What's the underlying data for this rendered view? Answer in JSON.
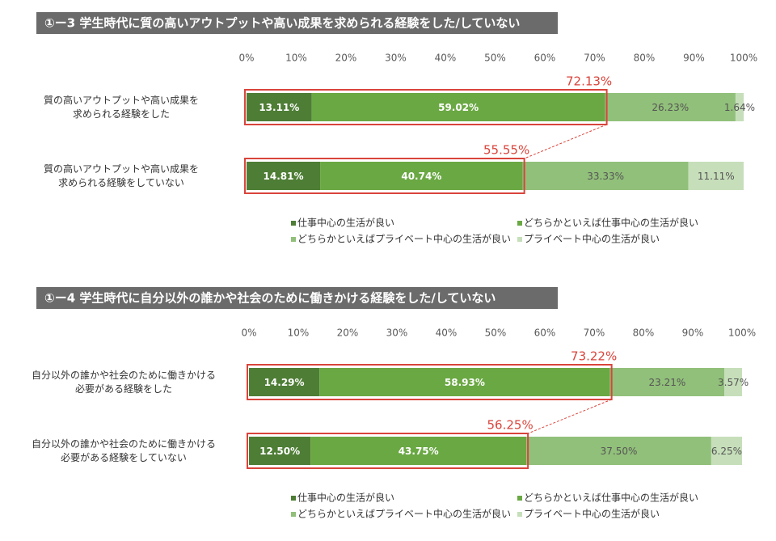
{
  "chart_data": [
    {
      "type": "stacked_bar_horizontal",
      "title": "①ー3 学生時代に質の高いアウトプットや高い成果を求められる経験をした/していない",
      "categories": [
        "質の高いアウトプットや高い成果を\n求められる経験をした",
        "質の高いアウトプットや高い成果を\n求められる経験をしていない"
      ],
      "xlim": [
        0,
        100
      ],
      "xticks": [
        {
          "value": 0,
          "label": "0%"
        },
        {
          "value": 10,
          "label": "10%"
        },
        {
          "value": 20,
          "label": "20%"
        },
        {
          "value": 30,
          "label": "30%"
        },
        {
          "value": 40,
          "label": "40%"
        },
        {
          "value": 50,
          "label": "50%"
        },
        {
          "value": 60,
          "label": "60%"
        },
        {
          "value": 70,
          "label": "70%"
        },
        {
          "value": 80,
          "label": "80%"
        },
        {
          "value": 90,
          "label": "90%"
        },
        {
          "value": 100,
          "label": "100%"
        }
      ],
      "series": [
        {
          "name": "仕事中心の生活が良い",
          "color": "#4e7d35",
          "values": [
            13.11,
            14.81
          ],
          "value_labels": [
            "13.11%",
            "14.81%"
          ]
        },
        {
          "name": "どちらかといえば仕事中心の生活が良い",
          "color": "#6aa843",
          "values": [
            59.02,
            40.74
          ],
          "value_labels": [
            "59.02%",
            "40.74%"
          ]
        },
        {
          "name": "どちらかといえばプライベート中心の生活が良い",
          "color": "#91c07a",
          "values": [
            26.23,
            33.33
          ],
          "value_labels": [
            "26.23%",
            "33.33%"
          ]
        },
        {
          "name": "プライベート中心の生活が良い",
          "color": "#c6dfba",
          "values": [
            1.64,
            11.11
          ],
          "value_labels": [
            "1.64%",
            "11.11%"
          ]
        }
      ],
      "highlight_totals": {
        "color": "#d9443b",
        "values": [
          72.13,
          55.55
        ],
        "value_labels": [
          "72.13%",
          "55.55%"
        ]
      }
    },
    {
      "type": "stacked_bar_horizontal",
      "title": "①ー4 学生時代に自分以外の誰かや社会のために働きかける経験をした/していない",
      "categories": [
        "自分以外の誰かや社会のために働きかける\n必要がある経験をした",
        "自分以外の誰かや社会のために働きかける\n必要がある経験をしていない"
      ],
      "xlim": [
        0,
        100
      ],
      "xticks": [
        {
          "value": 0,
          "label": "0%"
        },
        {
          "value": 10,
          "label": "10%"
        },
        {
          "value": 20,
          "label": "20%"
        },
        {
          "value": 30,
          "label": "30%"
        },
        {
          "value": 40,
          "label": "40%"
        },
        {
          "value": 50,
          "label": "50%"
        },
        {
          "value": 60,
          "label": "60%"
        },
        {
          "value": 70,
          "label": "70%"
        },
        {
          "value": 80,
          "label": "80%"
        },
        {
          "value": 90,
          "label": "90%"
        },
        {
          "value": 100,
          "label": "100%"
        }
      ],
      "series": [
        {
          "name": "仕事中心の生活が良い",
          "color": "#4e7d35",
          "values": [
            14.29,
            12.5
          ],
          "value_labels": [
            "14.29%",
            "12.50%"
          ]
        },
        {
          "name": "どちらかといえば仕事中心の生活が良い",
          "color": "#6aa843",
          "values": [
            58.93,
            43.75
          ],
          "value_labels": [
            "58.93%",
            "43.75%"
          ]
        },
        {
          "name": "どちらかといえばプライベート中心の生活が良い",
          "color": "#91c07a",
          "values": [
            23.21,
            37.5
          ],
          "value_labels": [
            "23.21%",
            "37.50%"
          ]
        },
        {
          "name": "プライベート中心の生活が良い",
          "color": "#c6dfba",
          "values": [
            3.57,
            6.25
          ],
          "value_labels": [
            "3.57%",
            "6.25%"
          ]
        }
      ],
      "highlight_totals": {
        "color": "#d9443b",
        "values": [
          73.22,
          56.25
        ],
        "value_labels": [
          "73.22%",
          "56.25%"
        ]
      }
    }
  ]
}
